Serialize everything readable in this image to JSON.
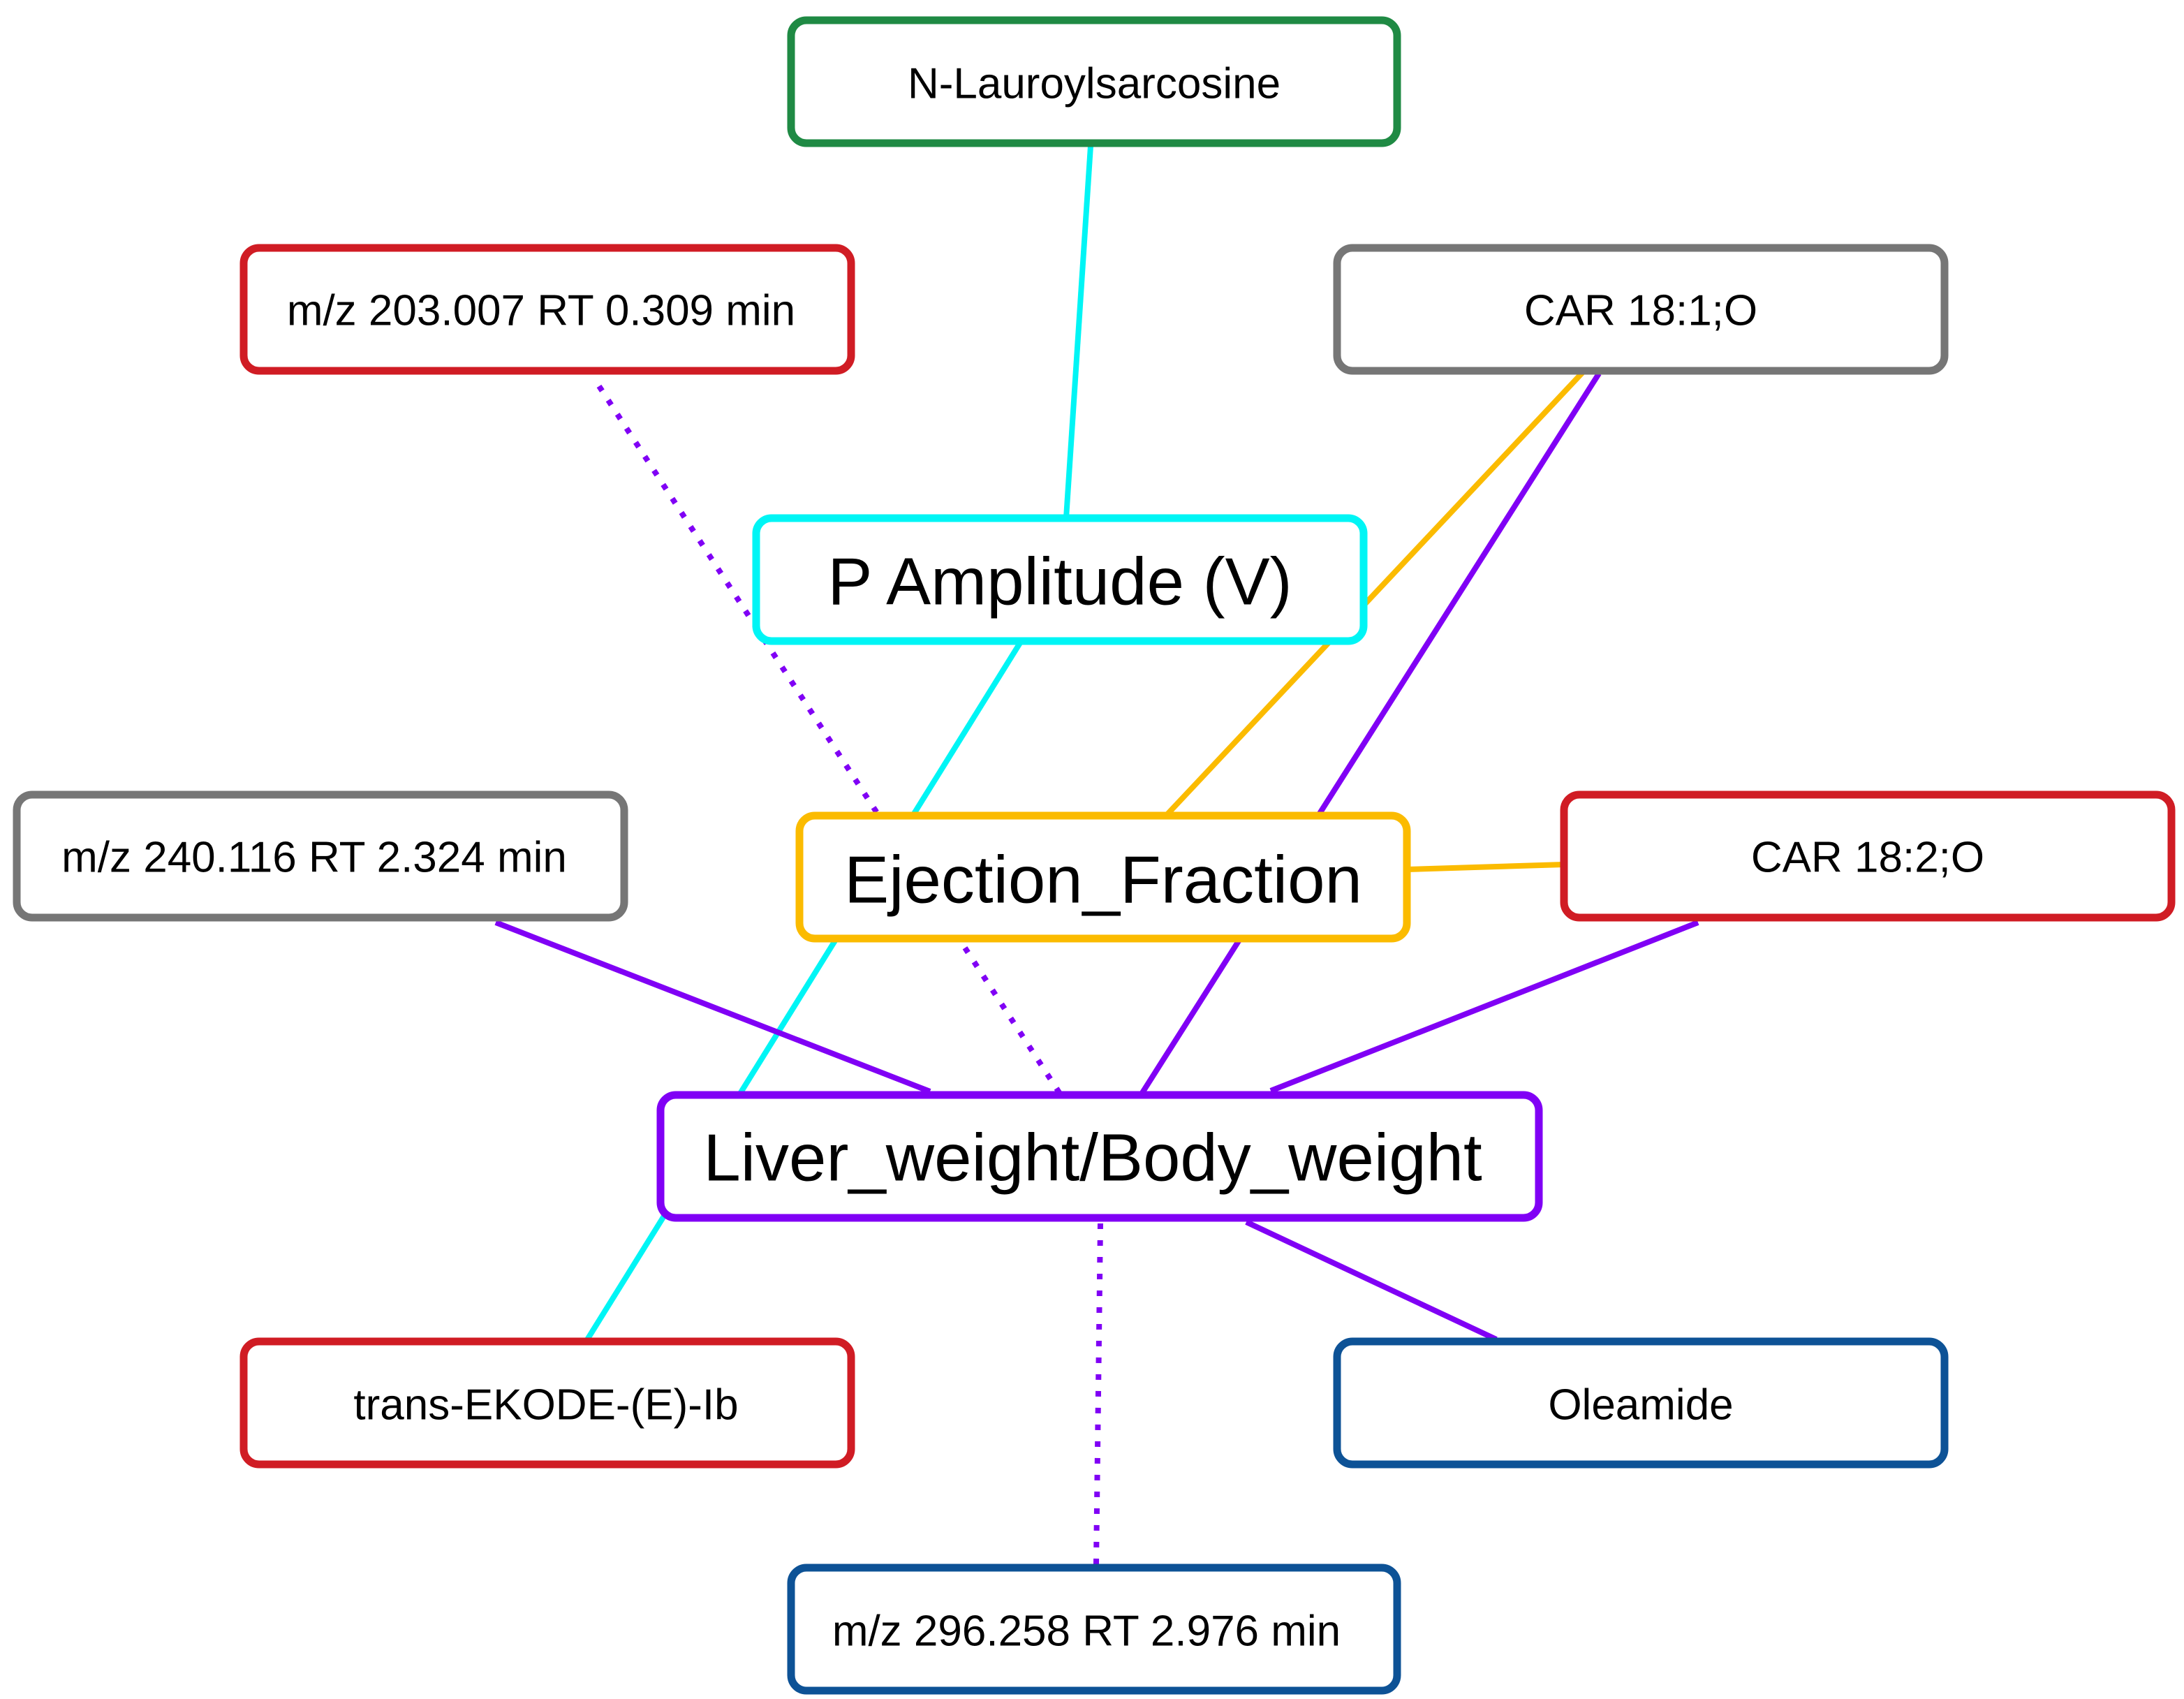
{
  "colors": {
    "cyan": "#00f5f5",
    "orange": "#fbbb00",
    "purple": "#8000f5",
    "red": "#d01c24",
    "gray": "#767676",
    "green": "#1f8a44",
    "blue": "#0d5296"
  },
  "nodes": {
    "n_lauroylsarcosine": {
      "label": "N-Lauroylsarcosine",
      "border": "green"
    },
    "mz_203": {
      "label": "m/z 203.007 RT 0.309 min",
      "border": "red"
    },
    "car_18_1": {
      "label": "CAR 18:1;O",
      "border": "gray"
    },
    "p_amplitude": {
      "label": "P Amplitude (V)",
      "border": "cyan"
    },
    "ejection_fraction": {
      "label": "Ejection_Fraction",
      "border": "orange"
    },
    "mz_240": {
      "label": "m/z 240.116 RT 2.324 min",
      "border": "gray"
    },
    "car_18_2": {
      "label": "CAR 18:2;O",
      "border": "red"
    },
    "liver_body_weight": {
      "label": "Liver_weight/Body_weight",
      "border": "purple"
    },
    "trans_ekode": {
      "label": "trans-EKODE-(E)-Ib",
      "border": "red"
    },
    "oleamide": {
      "label": "Oleamide",
      "border": "blue"
    },
    "mz_296": {
      "label": "m/z 296.258 RT 2.976 min",
      "border": "blue"
    }
  },
  "edges": [
    {
      "from": "n_lauroylsarcosine",
      "to": "p_amplitude",
      "color": "cyan",
      "style": "solid"
    },
    {
      "from": "p_amplitude",
      "to": "trans_ekode",
      "color": "cyan",
      "style": "solid"
    },
    {
      "from": "car_18_1",
      "to": "ejection_fraction",
      "color": "orange",
      "style": "solid"
    },
    {
      "from": "car_18_2",
      "to": "ejection_fraction",
      "color": "orange",
      "style": "solid"
    },
    {
      "from": "car_18_1",
      "to": "liver_body_weight",
      "color": "purple",
      "style": "solid"
    },
    {
      "from": "mz_203",
      "to": "liver_body_weight",
      "color": "purple",
      "style": "dotted"
    },
    {
      "from": "mz_240",
      "to": "liver_body_weight",
      "color": "purple",
      "style": "solid"
    },
    {
      "from": "car_18_2",
      "to": "liver_body_weight",
      "color": "purple",
      "style": "solid"
    },
    {
      "from": "liver_body_weight",
      "to": "oleamide",
      "color": "purple",
      "style": "solid"
    },
    {
      "from": "liver_body_weight",
      "to": "mz_296",
      "color": "purple",
      "style": "dotted"
    }
  ]
}
